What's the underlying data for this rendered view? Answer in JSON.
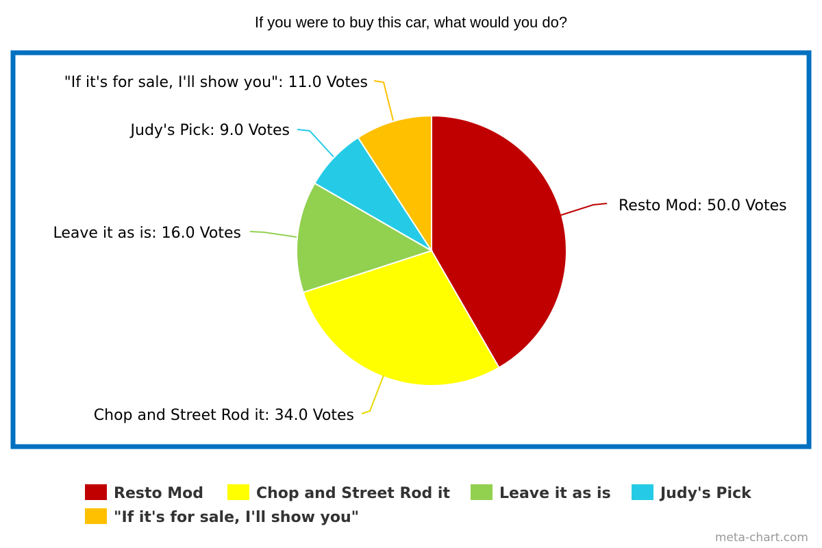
{
  "chart_data": {
    "type": "pie",
    "title": "If you were to buy this car, what would you do?",
    "unit": "Votes",
    "frame_color": "#0070c0",
    "slices": [
      {
        "label": "Resto Mod",
        "value": 50.0,
        "value_text": "50.0",
        "color": "#c00000"
      },
      {
        "label": "Chop and Street Rod it",
        "value": 34.0,
        "value_text": "34.0",
        "color": "#ffff00"
      },
      {
        "label": "Leave it as is",
        "value": 16.0,
        "value_text": "16.0",
        "color": "#92d050"
      },
      {
        "label": "Judy's Pick",
        "value": 9.0,
        "value_text": "9.0",
        "color": "#25cbe6"
      },
      {
        "label": "\"If it's for sale, I'll show you\"",
        "value": 11.0,
        "value_text": "11.0",
        "color": "#ffc000"
      }
    ],
    "legend_position": "bottom"
  },
  "credit": "meta-chart.com"
}
